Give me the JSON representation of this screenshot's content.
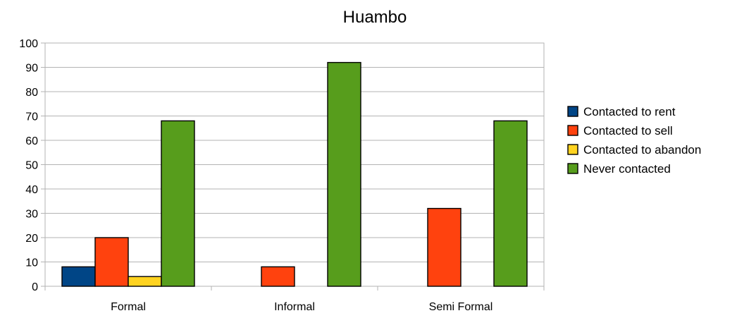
{
  "chart_data": {
    "type": "bar",
    "title": "Huambo",
    "xlabel": "",
    "ylabel": "",
    "ylim": [
      0,
      100
    ],
    "yticks": [
      0,
      10,
      20,
      30,
      40,
      50,
      60,
      70,
      80,
      90,
      100
    ],
    "grid": true,
    "legend_position": "right",
    "categories": [
      "Formal",
      "Informal",
      "Semi Formal"
    ],
    "series": [
      {
        "name": "Contacted to rent",
        "color": "#004586",
        "values": [
          8,
          0,
          0
        ]
      },
      {
        "name": "Contacted to sell",
        "color": "#ff420e",
        "values": [
          20,
          8,
          32
        ]
      },
      {
        "name": "Contacted to abandon",
        "color": "#ffd320",
        "values": [
          4,
          0,
          0
        ]
      },
      {
        "name": "Never contacted",
        "color": "#579d1c",
        "values": [
          68,
          92,
          68
        ]
      }
    ]
  }
}
